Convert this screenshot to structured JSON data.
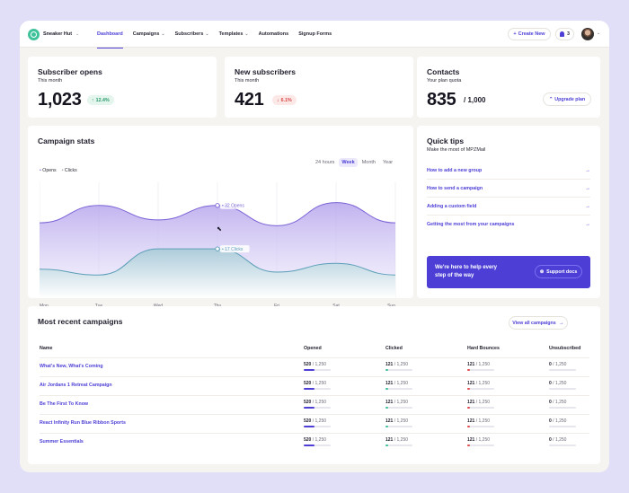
{
  "nav": {
    "brand": "Sneaker Hut",
    "menu": [
      {
        "label": "Dashboard"
      },
      {
        "label": "Campaigns"
      },
      {
        "label": "Subscribers"
      },
      {
        "label": "Templates"
      },
      {
        "label": "Automations"
      },
      {
        "label": "Signup Forms"
      }
    ],
    "create_label": "Create New",
    "notifications_count": "3"
  },
  "stats": {
    "subscriber_opens": {
      "title": "Subscriber opens",
      "period": "This month",
      "value": "1,023",
      "change": "12.4%"
    },
    "new_subscribers": {
      "title": "New subscribers",
      "period": "This month",
      "value": "421",
      "change": "6.1%"
    },
    "contacts": {
      "title": "Contacts",
      "period": "Your plan quota",
      "value": "835",
      "quota": "/ 1,000",
      "upgrade_label": "Upgrade plan"
    }
  },
  "campaign_stats": {
    "title": "Campaign stats",
    "legend": [
      "Opens",
      "Clicks"
    ],
    "tabs": [
      "24 hours",
      "Week",
      "Month",
      "Year"
    ],
    "active_tab": "Week"
  },
  "chart_data": {
    "type": "area",
    "categories": [
      "Mon",
      "Tue",
      "Wed",
      "Thu",
      "Fri",
      "Sat",
      "Sun"
    ],
    "series": [
      {
        "name": "Opens",
        "values": [
          26,
          32,
          27,
          32,
          25,
          33,
          26
        ]
      },
      {
        "name": "Clicks",
        "values": [
          10,
          8,
          17,
          17,
          9,
          12,
          8
        ]
      }
    ],
    "annotations": [
      "32 Opens",
      "17 Clicks"
    ],
    "ylim": [
      0,
      40
    ],
    "colors": {
      "opens": "#7b62d6",
      "clicks": "#5b9fb8"
    }
  },
  "quick_tips": {
    "title": "Quick tips",
    "subtitle": "Make the most of MPZMail",
    "items": [
      {
        "label": "How to add a new group"
      },
      {
        "label": "How to send a campaign"
      },
      {
        "label": "Adding a custom field"
      },
      {
        "label": "Getting the most from your campaigns"
      }
    ],
    "help_text": "We're here to help every step of the way",
    "support_label": "Support docs"
  },
  "campaigns": {
    "title": "Most recent campaigns",
    "view_all_label": "View all campaigns",
    "columns": [
      "Name",
      "Opened",
      "Clicked",
      "Hard Bounces",
      "Unsubscribed"
    ],
    "rows": [
      {
        "name": "What's New, What's Coming",
        "opened": "520",
        "clicked": "121",
        "bounces": "121",
        "unsub": "0",
        "total": "/ 1,250"
      },
      {
        "name": "Air Jordans 1 Retreat Campaign",
        "opened": "520",
        "clicked": "121",
        "bounces": "121",
        "unsub": "0",
        "total": "/ 1,250"
      },
      {
        "name": "Be The First To Know",
        "opened": "520",
        "clicked": "121",
        "bounces": "121",
        "unsub": "0",
        "total": "/ 1,250"
      },
      {
        "name": "React Infinity Run Blue Ribbon Sports",
        "opened": "520",
        "clicked": "121",
        "bounces": "121",
        "unsub": "0",
        "total": "/ 1,250"
      },
      {
        "name": "Summer Essentials",
        "opened": "520",
        "clicked": "121",
        "bounces": "121",
        "unsub": "0",
        "total": "/ 1,250"
      }
    ],
    "bar_fractions": {
      "opened": 0.416,
      "clicked": 0.097,
      "bounces": 0.097,
      "unsub": 0
    },
    "colors": {
      "opened": "#4d3fd6",
      "clicked": "#3fc29a",
      "bounces": "#e24c4c"
    }
  }
}
